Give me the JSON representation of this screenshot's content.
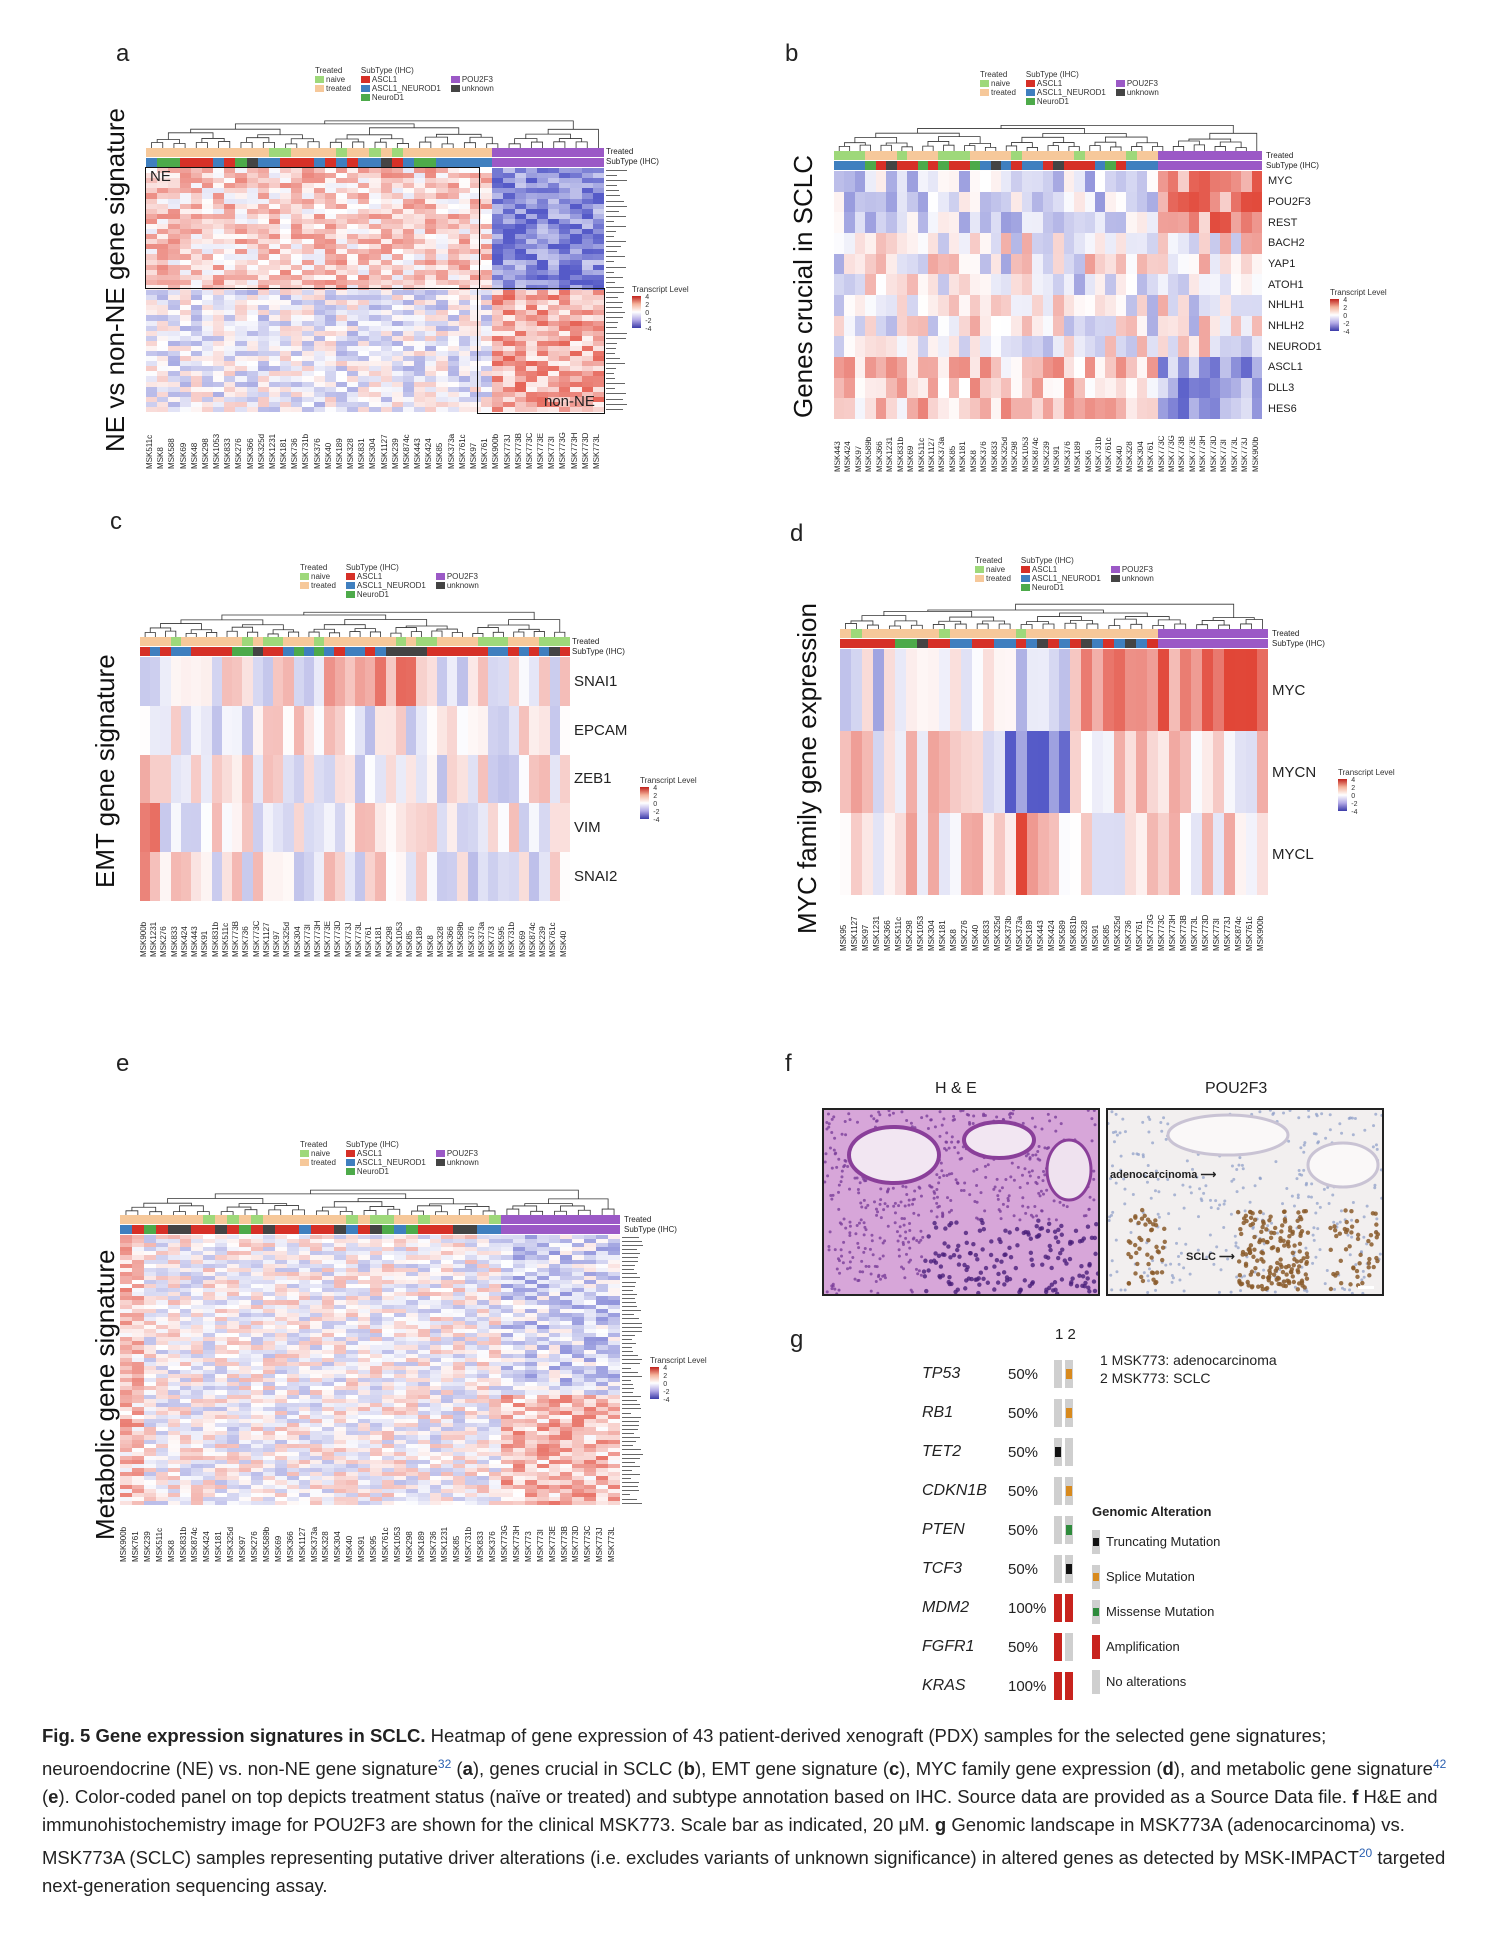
{
  "panels": {
    "a": {
      "letter": "a",
      "ylabel": "NE vs non-NE gene signature",
      "box_ne": "NE",
      "box_nonne": "non-NE",
      "samples": [
        "MSK511c",
        "MSK8",
        "MSK588",
        "MSK69",
        "MSK48",
        "MSK298",
        "MSK1053",
        "MSK833",
        "MSK276",
        "MSK366",
        "MSK325d",
        "MSK1231",
        "MSK181",
        "MSK736",
        "MSK731b",
        "MSK376",
        "MSK40",
        "MSK189",
        "MSK328",
        "MSK831",
        "MSK304",
        "MSK1127",
        "MSK239",
        "MSK874c",
        "MSK443",
        "MSK424",
        "MSK85",
        "MSK373a",
        "MSK761c",
        "MSK97",
        "MSK761",
        "MSK900b",
        "MSK773J",
        "MSK773B",
        "MSK773C",
        "MSK773E",
        "MSK773I",
        "MSK773G",
        "MSK773H",
        "MSK773D",
        "MSK773L"
      ]
    },
    "b": {
      "letter": "b",
      "ylabel": "Genes crucial in SCLC",
      "genes": [
        "MYC",
        "POU2F3",
        "REST",
        "BACH2",
        "YAP1",
        "ATOH1",
        "NHLH1",
        "NHLH2",
        "NEUROD1",
        "ASCL1",
        "DLL3",
        "HES6"
      ],
      "samples": [
        "MSK443",
        "MSK424",
        "MSK97",
        "MSK589b",
        "MSK366",
        "MSK1231",
        "MSK831b",
        "MSK69",
        "MSK511c",
        "MSK1127",
        "MSK373a",
        "MSK85",
        "MSK181",
        "MSK8",
        "MSK376",
        "MSK833",
        "MSK325d",
        "MSK298",
        "MSK1053",
        "MSK874c",
        "MSK239",
        "MSK91",
        "MSK376",
        "MSK189",
        "MSK6",
        "MSK731b",
        "MSK761c",
        "MSK40",
        "MSK328",
        "MSK304",
        "MSK761",
        "MSK773C",
        "MSK773G",
        "MSK773B",
        "MSK773E",
        "MSK773H",
        "MSK773D",
        "MSK773I",
        "MSK773L",
        "MSK773J",
        "MSK900b"
      ]
    },
    "c": {
      "letter": "c",
      "ylabel": "EMT gene signature",
      "genes": [
        "SNAI1",
        "EPCAM",
        "ZEB1",
        "VIM",
        "SNAI2"
      ],
      "samples": [
        "MSK900b",
        "MSK1231",
        "MSK276",
        "MSK833",
        "MSK424",
        "MSK443",
        "MSK91",
        "MSK831b",
        "MSK511c",
        "MSK773B",
        "MSK736",
        "MSK773C",
        "MSK1127",
        "MSK97",
        "MSK325d",
        "MSK304",
        "MSK773I",
        "MSK773H",
        "MSK773E",
        "MSK773D",
        "MSK773J",
        "MSK773L",
        "MSK761",
        "MSK181",
        "MSK298",
        "MSK1053",
        "MSK85",
        "MSK189",
        "MSK8",
        "MSK328",
        "MSK366",
        "MSK589b",
        "MSK376",
        "MSK373a",
        "MSK773",
        "MSK595",
        "MSK731b",
        "MSK69",
        "MSK874c",
        "MSK239",
        "MSK761c",
        "MSK40"
      ]
    },
    "d": {
      "letter": "d",
      "ylabel": "MYC family gene expression",
      "genes": [
        "MYC",
        "MYCN",
        "MYCL"
      ],
      "samples": [
        "MSK95",
        "MSK1127",
        "MSK97",
        "MSK1231",
        "MSK366",
        "MSK511c",
        "MSK298",
        "MSK1053",
        "MSK304",
        "MSK181",
        "MSK8",
        "MSK276",
        "MSK40",
        "MSK833",
        "MSK325d",
        "MSK373b",
        "MSK373a",
        "MSK189",
        "MSK443",
        "MSK424",
        "MSK589",
        "MSK831b",
        "MSK328",
        "MSK91",
        "MSK85",
        "MSK325d",
        "MSK736",
        "MSK761",
        "MSK773G",
        "MSK773C",
        "MSK773H",
        "MSK773B",
        "MSK773L",
        "MSK773D",
        "MSK773I",
        "MSK773J",
        "MSK874c",
        "MSK761c",
        "MSK900b"
      ]
    },
    "e": {
      "letter": "e",
      "ylabel": "Metabolic gene signature",
      "samples": [
        "MSK900b",
        "MSK761",
        "MSK239",
        "MSK511c",
        "MSK8",
        "MSK831b",
        "MSK874c",
        "MSK424",
        "MSK181",
        "MSK325d",
        "MSK97",
        "MSK276",
        "MSK589b",
        "MSK69",
        "MSK366",
        "MSK1127",
        "MSK373a",
        "MSK328",
        "MSK304",
        "MSK40",
        "MSK91",
        "MSK95",
        "MSK761c",
        "MSK1053",
        "MSK298",
        "MSK189",
        "MSK736",
        "MSK1231",
        "MSK85",
        "MSK731b",
        "MSK833",
        "MSK376",
        "MSK773G",
        "MSK773H",
        "MSK773",
        "MSK773I",
        "MSK773E",
        "MSK773B",
        "MSK773D",
        "MSK773C",
        "MSK773J",
        "MSK773L"
      ]
    },
    "f": {
      "letter": "f",
      "title_he": "H & E",
      "title_pou": "POU2F3",
      "label_adeno": "adenocarcinoma",
      "label_sclc": "SCLC"
    },
    "g": {
      "letter": "g",
      "col_header": "1 2",
      "note1": "1 MSK773: adenocarcinoma",
      "note2": "2 MSK773: SCLC",
      "rows": [
        {
          "gene": "TP53",
          "pct": "50%",
          "c1": "none",
          "c2": "splice"
        },
        {
          "gene": "RB1",
          "pct": "50%",
          "c1": "none",
          "c2": "splice"
        },
        {
          "gene": "TET2",
          "pct": "50%",
          "c1": "trunc",
          "c2": "none"
        },
        {
          "gene": "CDKN1B",
          "pct": "50%",
          "c1": "none",
          "c2": "splice"
        },
        {
          "gene": "PTEN",
          "pct": "50%",
          "c1": "none",
          "c2": "missense"
        },
        {
          "gene": "TCF3",
          "pct": "50%",
          "c1": "none",
          "c2": "trunc"
        },
        {
          "gene": "MDM2",
          "pct": "100%",
          "c1": "amp",
          "c2": "amp"
        },
        {
          "gene": "FGFR1",
          "pct": "50%",
          "c1": "amp",
          "c2": "none"
        },
        {
          "gene": "KRAS",
          "pct": "100%",
          "c1": "amp",
          "c2": "amp"
        }
      ],
      "legend_title": "Genomic Alteration",
      "legend": [
        {
          "key": "trunc",
          "label": "Truncating Mutation"
        },
        {
          "key": "splice",
          "label": "Splice Mutation"
        },
        {
          "key": "missense",
          "label": "Missense Mutation"
        },
        {
          "key": "amp",
          "label": "Amplification"
        },
        {
          "key": "none",
          "label": "No alterations"
        }
      ]
    }
  },
  "legend_common": {
    "treated_title": "Treated",
    "naive": "naive",
    "treated": "treated",
    "subtype_title": "SubType (IHC)",
    "ascl1": "ASCL1",
    "ascl1_neurod1": "ASCL1_NEUROD1",
    "neurod1": "NeuroD1",
    "pou2f3": "POU2F3",
    "unknown": "unknown",
    "row_treated": "Treated",
    "row_subtype": "SubType (IHC)",
    "transcript_level": "Transcript Level",
    "ticks": [
      "4",
      "2",
      "0",
      "-2",
      "-4"
    ]
  },
  "colors": {
    "naive": "#9ed87a",
    "treated": "#f6c89a",
    "ascl1": "#d63027",
    "ascl1_neurod1": "#3f7fbf",
    "neurod1": "#4daa4a",
    "pou2f3": "#9b59c6",
    "unknown": "#444444",
    "trunc": "#111111",
    "splice": "#d88a1e",
    "missense": "#2e8b3c",
    "amp": "#c8231e",
    "none": "#cfcfcf"
  },
  "caption": {
    "title": "Fig. 5 Gene expression signatures in SCLC.",
    "t1": " Heatmap of gene expression of 43 patient-derived xenograft (PDX) samples for the selected gene signatures; neuroendocrine (NE) vs. non-NE gene signature",
    "ref1": "32",
    "t2": " (",
    "la": "a",
    "t3": "), genes crucial in SCLC (",
    "lb": "b",
    "t4": "), EMT gene signature (",
    "lc": "c",
    "t5": "), MYC family gene expression (",
    "ld": "d",
    "t6": "), and metabolic gene signature",
    "ref2": "42",
    "t7": " (",
    "le": "e",
    "t8": "). Color-coded panel on top depicts treatment status (naïve or treated) and subtype annotation based on IHC. Source data are provided as a Source Data file. ",
    "lf": "f",
    "t9": " H&E and immunohistochemistry image for POU2F3 are shown for the clinical MSK773. Scale bar as indicated, 20 μM. ",
    "lg": "g",
    "t10": " Genomic landscape in MSK773A (adenocarcinoma) vs. MSK773A (SCLC) samples representing putative driver alterations (i.e. excludes variants of unknown significance) in altered genes as detected by MSK-IMPACT",
    "ref3": "20",
    "t11": " targeted next-generation sequencing assay."
  }
}
